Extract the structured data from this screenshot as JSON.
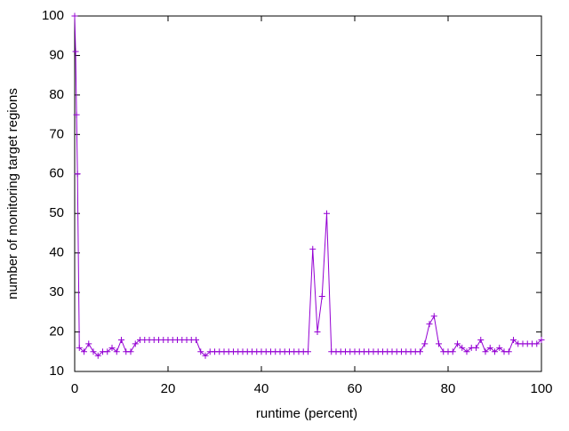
{
  "chart_data": {
    "type": "line",
    "xlabel": "runtime (percent)",
    "ylabel": "number of monitoring target regions",
    "xlim": [
      0,
      100
    ],
    "ylim": [
      10,
      100
    ],
    "xticks": [
      0,
      20,
      40,
      60,
      80,
      100
    ],
    "yticks": [
      10,
      20,
      30,
      40,
      50,
      60,
      70,
      80,
      90,
      100
    ],
    "x": [
      0,
      0.2,
      0.4,
      0.6,
      1,
      2,
      3,
      4,
      5,
      6,
      7,
      8,
      9,
      10,
      11,
      12,
      13,
      14,
      15,
      16,
      17,
      18,
      19,
      20,
      21,
      22,
      23,
      24,
      25,
      26,
      27,
      28,
      29,
      30,
      31,
      32,
      33,
      34,
      35,
      36,
      37,
      38,
      39,
      40,
      41,
      42,
      43,
      44,
      45,
      46,
      47,
      48,
      49,
      50,
      51,
      52,
      53,
      54,
      55,
      56,
      57,
      58,
      59,
      60,
      61,
      62,
      63,
      64,
      65,
      66,
      67,
      68,
      69,
      70,
      71,
      72,
      73,
      74,
      75,
      76,
      77,
      78,
      79,
      80,
      81,
      82,
      83,
      84,
      85,
      86,
      87,
      88,
      89,
      90,
      91,
      92,
      93,
      94,
      95,
      96,
      97,
      98,
      99,
      100
    ],
    "series": [
      {
        "color": "#9400d3",
        "values": [
          100,
          91,
          75,
          60,
          16,
          15,
          17,
          15,
          14,
          15,
          15,
          16,
          15,
          18,
          15,
          15,
          17,
          18,
          18,
          18,
          18,
          18,
          18,
          18,
          18,
          18,
          18,
          18,
          18,
          18,
          15,
          14,
          15,
          15,
          15,
          15,
          15,
          15,
          15,
          15,
          15,
          15,
          15,
          15,
          15,
          15,
          15,
          15,
          15,
          15,
          15,
          15,
          15,
          15,
          41,
          20,
          29,
          50,
          15,
          15,
          15,
          15,
          15,
          15,
          15,
          15,
          15,
          15,
          15,
          15,
          15,
          15,
          15,
          15,
          15,
          15,
          15,
          15,
          17,
          22,
          24,
          17,
          15,
          15,
          15,
          17,
          16,
          15,
          16,
          16,
          18,
          15,
          16,
          15,
          16,
          15,
          15,
          18,
          17,
          17,
          17,
          17,
          17,
          18
        ]
      }
    ]
  }
}
